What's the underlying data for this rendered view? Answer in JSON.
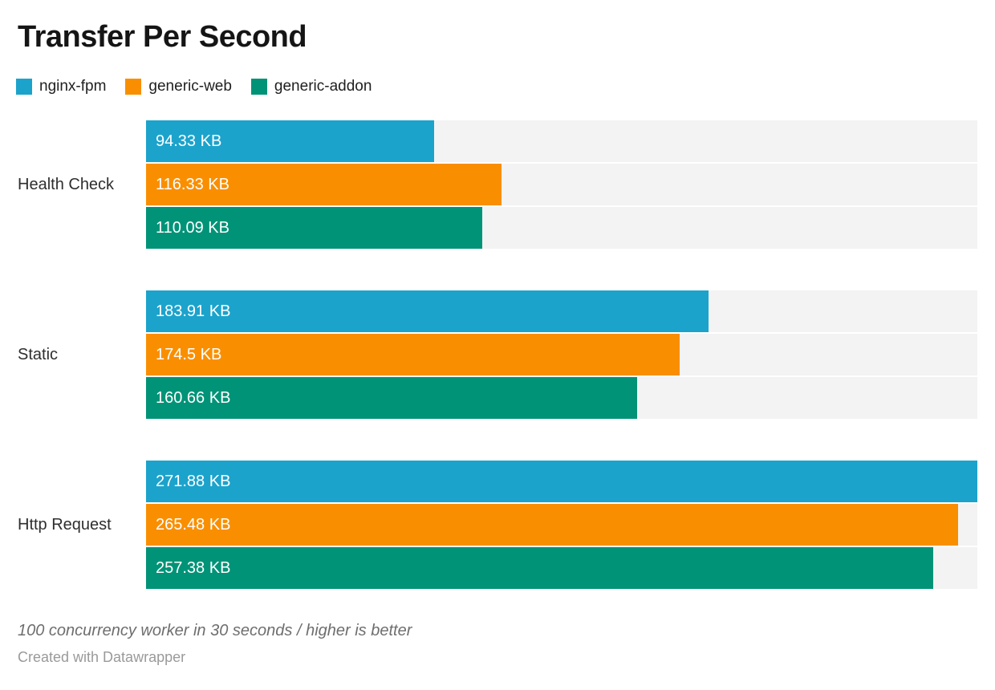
{
  "header": {
    "title": "Transfer Per Second"
  },
  "legend": {
    "items": [
      {
        "label": "nginx-fpm",
        "color": "#1BA3CC"
      },
      {
        "label": "generic-web",
        "color": "#F98F00"
      },
      {
        "label": "generic-addon",
        "color": "#009377"
      }
    ]
  },
  "chart_data": {
    "type": "bar",
    "orientation": "horizontal",
    "title": "Transfer Per Second",
    "categories": [
      "Health Check",
      "Static",
      "Http Request"
    ],
    "series": [
      {
        "name": "nginx-fpm",
        "color": "#1BA3CC",
        "values": [
          94.33,
          183.91,
          271.88
        ],
        "labels": [
          "94.33 KB",
          "183.91 KB",
          "271.88 KB"
        ]
      },
      {
        "name": "generic-web",
        "color": "#F98F00",
        "values": [
          116.33,
          174.5,
          265.48
        ],
        "labels": [
          "116.33 KB",
          "174.5 KB",
          "265.48 KB"
        ]
      },
      {
        "name": "generic-addon",
        "color": "#009377",
        "values": [
          110.09,
          160.66,
          257.38
        ],
        "labels": [
          "110.09 KB",
          "160.66 KB",
          "257.38 KB"
        ]
      }
    ],
    "value_unit": "KB",
    "xlim": [
      0,
      271.88
    ],
    "track_color": "#f3f3f3",
    "grid": false,
    "legend_position": "top"
  },
  "footer": {
    "footnote": "100 concurrency worker in 30 seconds / higher is better",
    "attribution": "Created with Datawrapper"
  }
}
